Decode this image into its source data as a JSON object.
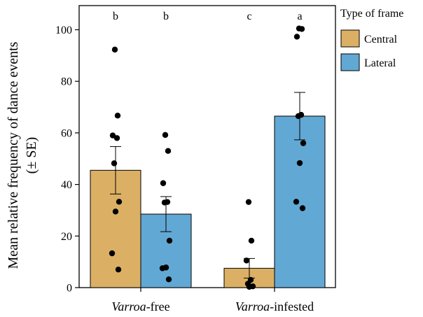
{
  "chart_data": {
    "type": "bar",
    "ylabel": "Mean relative frequency of dance events",
    "ylabel_line2": "(± SE)",
    "ylim": [
      0,
      110
    ],
    "yticks": [
      0,
      20,
      40,
      60,
      80,
      100
    ],
    "categories": [
      {
        "italic": "Varroa",
        "rest": "-free"
      },
      {
        "italic": "Varroa",
        "rest": "-infested"
      }
    ],
    "legend": {
      "title": "Type of frame",
      "placement": "top-right"
    },
    "series": [
      {
        "name": "Central",
        "color": "#dbb064",
        "means": [
          45.5,
          7.5
        ],
        "se": [
          9.2,
          3.8
        ],
        "letters": [
          "b",
          "c"
        ],
        "points": [
          [
            92.3,
            66.7,
            59.0,
            58.0,
            48.2,
            33.3,
            29.5,
            13.3,
            7.0
          ],
          [
            33.2,
            18.2,
            10.5,
            3.0,
            1.5,
            0.5,
            0.3
          ]
        ]
      },
      {
        "name": "Lateral",
        "color": "#62a8d4",
        "means": [
          28.5,
          66.5
        ],
        "se": [
          6.8,
          9.2
        ],
        "letters": [
          "b",
          "a"
        ],
        "points": [
          [
            59.2,
            53.0,
            40.5,
            33.2,
            33.0,
            18.2,
            7.8,
            7.5,
            3.2
          ],
          [
            100.5,
            100.3,
            97.3,
            67.0,
            66.5,
            56.0,
            48.3,
            33.3,
            30.8
          ]
        ]
      }
    ]
  }
}
